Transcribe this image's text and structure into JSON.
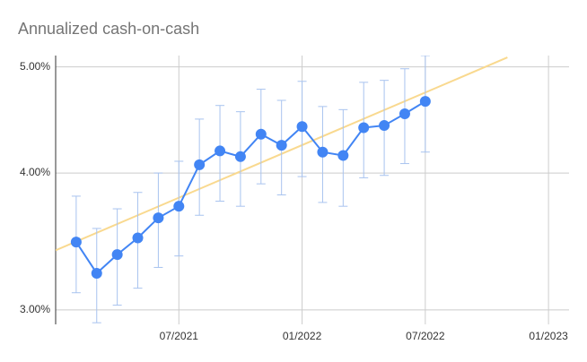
{
  "chart_data": {
    "type": "line",
    "title": "Annualized cash-on-cash",
    "x": [
      "2021-02",
      "2021-03",
      "2021-04",
      "2021-05",
      "2021-06",
      "2021-07",
      "2021-08",
      "2021-09",
      "2021-10",
      "2021-11",
      "2021-12",
      "2022-01",
      "2022-02",
      "2022-03",
      "2022-04",
      "2022-05",
      "2022-06",
      "2022-07"
    ],
    "series": [
      {
        "color": "#4285f4",
        "error_color": "#a8c3ef",
        "values": [
          3.46,
          3.24,
          3.37,
          3.49,
          3.64,
          3.73,
          4.07,
          4.19,
          4.14,
          4.34,
          4.24,
          4.41,
          4.18,
          4.15,
          4.4,
          4.42,
          4.53,
          4.65
        ],
        "errors": [
          0.35,
          0.32,
          0.34,
          0.35,
          0.36,
          0.37,
          0.41,
          0.42,
          0.41,
          0.43,
          0.42,
          0.44,
          0.42,
          0.42,
          0.44,
          0.44,
          0.45,
          0.47
        ]
      }
    ],
    "trendline": {
      "color": "#f9d98f",
      "x": [
        "2021-01",
        "2022-11"
      ],
      "values": [
        3.4,
        5.1
      ]
    },
    "log_y": true,
    "grid": true,
    "ylim": [
      2.91,
      5.12
    ],
    "yticks": [
      {
        "value": 3,
        "label": "3.00%"
      },
      {
        "value": 4,
        "label": "4.00%"
      },
      {
        "value": 5,
        "label": "5.00%"
      }
    ],
    "xlim": [
      "2021-01",
      "2023-02"
    ],
    "xticks": [
      {
        "value": "2021-07",
        "label": "07/2021"
      },
      {
        "value": "2022-01",
        "label": "01/2022"
      },
      {
        "value": "2022-07",
        "label": "07/2022"
      },
      {
        "value": "2023-01",
        "label": "01/2023"
      }
    ]
  }
}
